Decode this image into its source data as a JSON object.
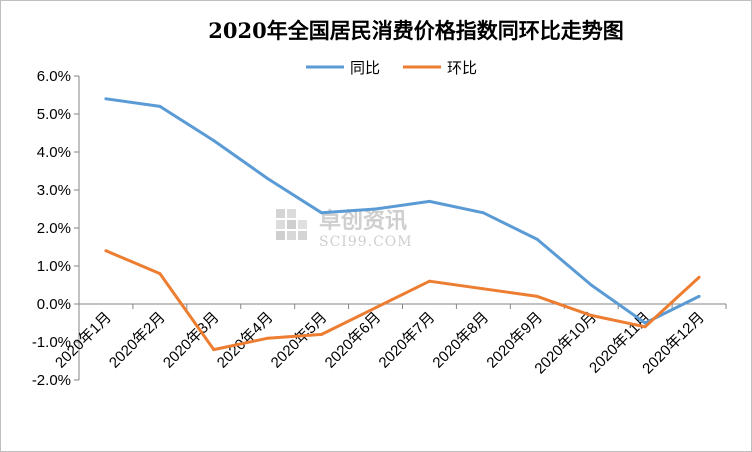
{
  "chart_data": {
    "type": "line",
    "title": "2020年全国居民消费价格指数同环比走势图",
    "categories": [
      "2020年1月",
      "2020年2月",
      "2020年3月",
      "2020年4月",
      "2020年5月",
      "2020年6月",
      "2020年7月",
      "2020年8月",
      "2020年9月",
      "2020年10月",
      "2020年11月",
      "2020年12月"
    ],
    "series": [
      {
        "name": "同比",
        "color": "#5b9bd5",
        "values": [
          5.4,
          5.2,
          4.3,
          3.3,
          2.4,
          2.5,
          2.7,
          2.4,
          1.7,
          0.5,
          -0.5,
          0.2
        ]
      },
      {
        "name": "环比",
        "color": "#ed7d31",
        "values": [
          1.4,
          0.8,
          -1.2,
          -0.9,
          -0.8,
          -0.1,
          0.6,
          0.4,
          0.2,
          -0.3,
          -0.6,
          0.7
        ]
      }
    ],
    "ylim": [
      -2.0,
      6.0
    ],
    "yticks": [
      "-2.0%",
      "-1.0%",
      "0.0%",
      "1.0%",
      "2.0%",
      "3.0%",
      "4.0%",
      "5.0%",
      "6.0%"
    ],
    "ytick_values": [
      -2,
      -1,
      0,
      1,
      2,
      3,
      4,
      5,
      6
    ],
    "grid": false,
    "legend_position": "top"
  },
  "watermark": {
    "main": "卓创资讯",
    "sub": "SCI99.COM"
  }
}
